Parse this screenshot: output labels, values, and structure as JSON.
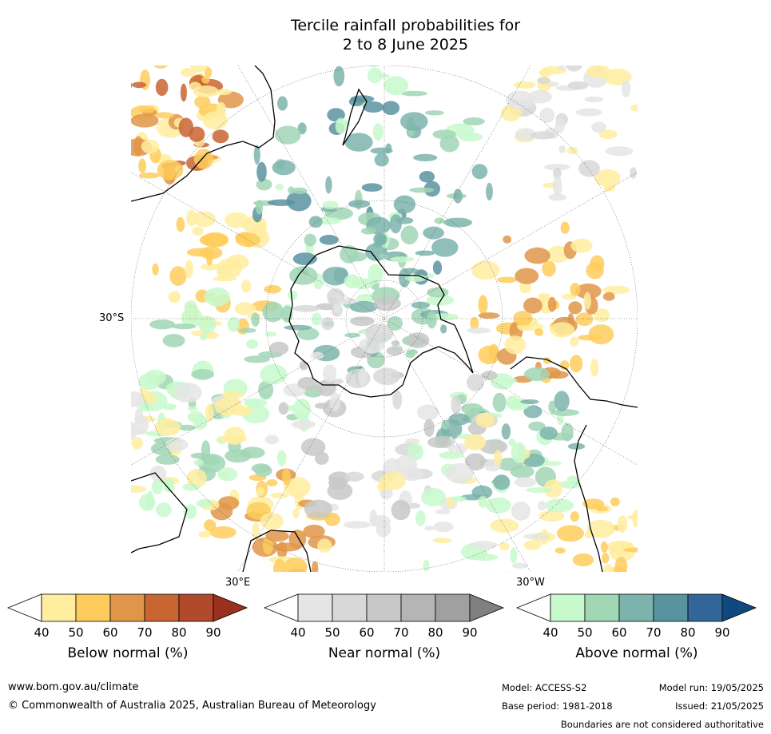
{
  "title": {
    "line1": "Tercile rainfall probabilities for",
    "line2": "2 to 8 June 2025"
  },
  "map": {
    "projection": "south polar stereographic",
    "lat_labels": [
      "30°S"
    ],
    "lon_labels": [
      "30°E",
      "30°W"
    ]
  },
  "colorbars": [
    {
      "name": "below",
      "title": "Below normal (%)",
      "ticks": [
        "40",
        "50",
        "60",
        "70",
        "80",
        "90"
      ],
      "colors": [
        "#ffffff",
        "#ffeda0",
        "#fecc5c",
        "#e0964a",
        "#c96433",
        "#b04a2a",
        "#993020"
      ]
    },
    {
      "name": "near",
      "title": "Near normal (%)",
      "ticks": [
        "40",
        "50",
        "60",
        "70",
        "80",
        "90"
      ],
      "colors": [
        "#ffffff",
        "#e5e5e5",
        "#d8d8d8",
        "#c8c8c8",
        "#b5b5b5",
        "#a0a0a0",
        "#808080"
      ]
    },
    {
      "name": "above",
      "title": "Above normal (%)",
      "ticks": [
        "40",
        "50",
        "60",
        "70",
        "80",
        "90"
      ],
      "colors": [
        "#ffffff",
        "#c7f9cc",
        "#a1d6b5",
        "#7cb3ac",
        "#5a93a0",
        "#336699",
        "#10497e"
      ]
    }
  ],
  "footer": {
    "url": "www.bom.gov.au/climate",
    "copyright": "© Commonwealth of Australia 2025, Australian Bureau of Meteorology",
    "model": "Model: ACCESS-S2",
    "model_run": "Model run: 19/05/2025",
    "base_period": "Base period: 1981-2018",
    "issued": "Issued: 21/05/2025",
    "boundaries": "Boundaries are not considered authoritative"
  }
}
